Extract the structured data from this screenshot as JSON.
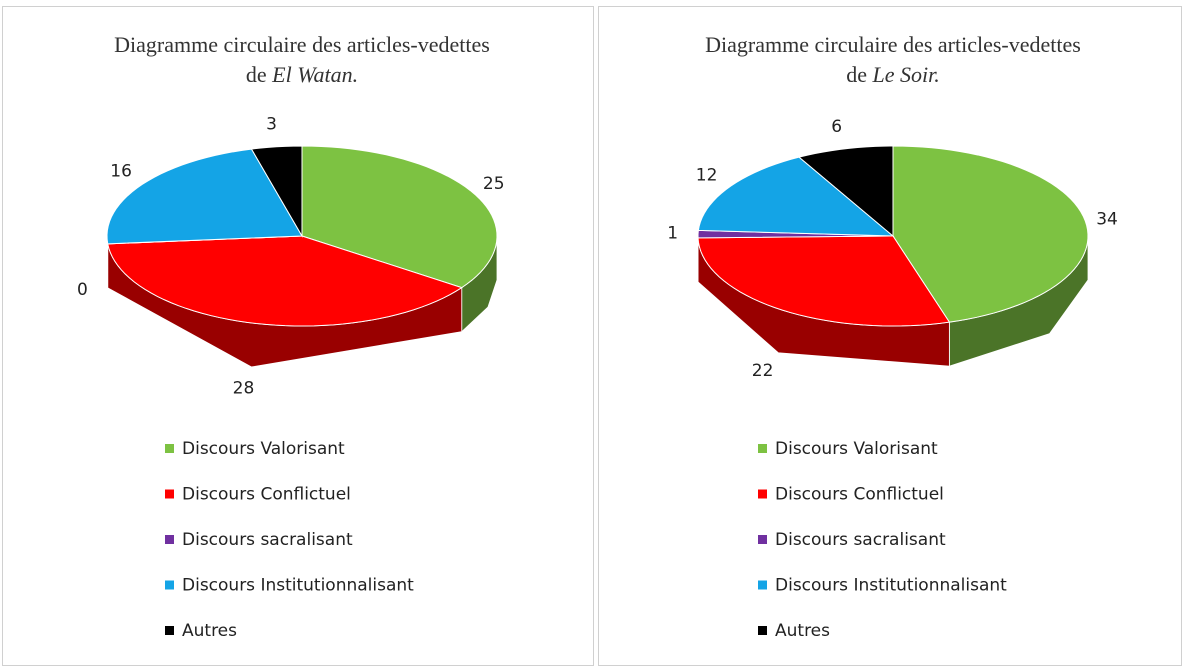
{
  "chart_data": [
    {
      "type": "pie",
      "title": "Diagramme circulaire des articles-vedettes de",
      "title_italic": "El Watan.",
      "categories": [
        "Discours Valorisant",
        "Discours Conflictuel",
        "Discours sacralisant",
        "Discours Institutionnalisant",
        "Autres"
      ],
      "values": [
        25,
        28,
        0,
        16,
        3
      ],
      "colors": [
        "#7dc242",
        "#ff0000",
        "#7030a0",
        "#14a4e6",
        "#000000"
      ]
    },
    {
      "type": "pie",
      "title": "Diagramme circulaire des articles-vedettes de",
      "title_italic": "Le Soir.",
      "categories": [
        "Discours Valorisant",
        "Discours Conflictuel",
        "Discours sacralisant",
        "Discours Institutionnalisant",
        "Autres"
      ],
      "values": [
        34,
        22,
        1,
        12,
        6
      ],
      "colors": [
        "#7dc242",
        "#ff0000",
        "#7030a0",
        "#14a4e6",
        "#000000"
      ]
    }
  ]
}
